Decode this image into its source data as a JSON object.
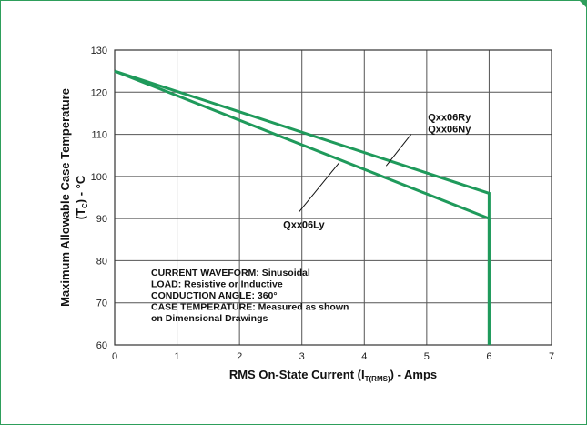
{
  "chart_data": {
    "type": "line",
    "xlabel": "RMS On-State Current (I",
    "xlabel_sub": "T(RMS)",
    "xlabel_tail": ") - Amps",
    "ylabel": "Maximum Allowable Case Temperature",
    "ylabel2": "(T",
    "ylabel2_sub": "C",
    "ylabel2_tail": ") - °C",
    "xlim": [
      0,
      7
    ],
    "ylim": [
      60,
      130
    ],
    "x_ticks": [
      0,
      1,
      2,
      3,
      4,
      5,
      6,
      7
    ],
    "y_ticks": [
      60,
      70,
      80,
      90,
      100,
      110,
      120,
      130
    ],
    "grid": true,
    "line_color": "#1f9a5b",
    "series": [
      {
        "name": "Qxx06Ry\nQxx06Ny",
        "x": [
          0,
          6,
          6
        ],
        "y": [
          125,
          96,
          60
        ]
      },
      {
        "name": "Qxx06Ly",
        "x": [
          0,
          6,
          6
        ],
        "y": [
          125,
          90,
          60
        ]
      }
    ],
    "series_labels": [
      {
        "lines": [
          "Qxx06Ry",
          "Qxx06Ny"
        ],
        "text_at": [
          5.02,
          113.3
        ],
        "pointer_from": [
          4.75,
          110.0
        ],
        "pointer_to": [
          4.35,
          102.5
        ]
      },
      {
        "lines": [
          "Qxx06Ly"
        ],
        "text_at": [
          2.7,
          87.8
        ],
        "pointer_from": [
          2.95,
          91.5
        ],
        "pointer_to": [
          3.6,
          103.3
        ]
      }
    ],
    "annotation": [
      "CURRENT WAVEFORM: Sinusoidal",
      "LOAD: Resistive or Inductive",
      "CONDUCTION ANGLE: 360°",
      "CASE TEMPERATURE: Measured as shown",
      "on Dimensional Drawings"
    ]
  }
}
